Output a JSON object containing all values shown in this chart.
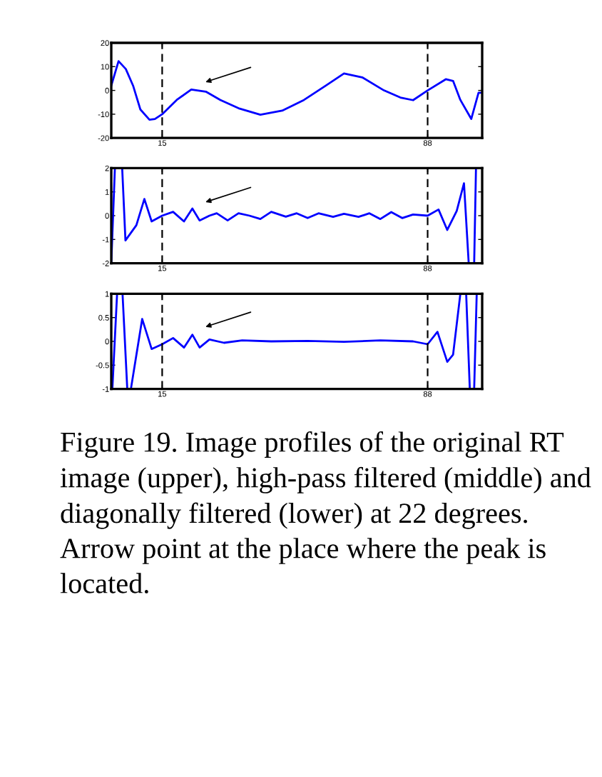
{
  "chart_data": [
    {
      "type": "line",
      "xlim": [
        1,
        103
      ],
      "xticks": [
        15,
        88
      ],
      "ylim": [
        -20,
        20
      ],
      "yticks": [
        -20,
        -10,
        0,
        10,
        20
      ],
      "grid": false,
      "marker": "none",
      "line_style": "solid",
      "ref_lines": [
        {
          "axis": "x",
          "value": 15,
          "color": "#000000",
          "line_style": "dashed"
        },
        {
          "axis": "x",
          "value": 88,
          "color": "#000000",
          "line_style": "dashed"
        }
      ],
      "x": [
        1,
        3,
        5,
        7,
        9,
        11.5,
        13,
        15,
        19,
        23,
        27,
        31,
        36,
        42,
        48,
        54,
        60,
        65,
        70,
        76,
        80.5,
        84,
        88,
        93,
        95,
        97,
        100,
        102,
        103
      ],
      "series": [
        {
          "color": "#0000ff",
          "values": [
            2,
            12.3,
            9,
            2,
            -8,
            -12.3,
            -12,
            -10,
            -4,
            0.4,
            -0.5,
            -4,
            -7.5,
            -10.2,
            -8.5,
            -4,
            2,
            7.1,
            5.5,
            0,
            -3,
            -4.1,
            0,
            4.7,
            4,
            -4,
            -12,
            -1,
            -1
          ]
        }
      ]
    },
    {
      "type": "line",
      "xlim": [
        1,
        103
      ],
      "xticks": [
        15,
        88
      ],
      "ylim": [
        -2,
        2
      ],
      "yticks": [
        -2,
        -1,
        0,
        1,
        2
      ],
      "grid": false,
      "marker": "none",
      "line_style": "solid",
      "ref_lines": [
        {
          "axis": "x",
          "value": 15,
          "color": "#000000",
          "line_style": "dashed"
        },
        {
          "axis": "x",
          "value": 88,
          "color": "#000000",
          "line_style": "dashed"
        }
      ],
      "x": [
        1,
        2,
        3,
        4,
        4.9,
        7.9,
        10.1,
        12.1,
        15,
        18,
        21,
        23.3,
        25.3,
        28,
        30,
        33,
        36,
        39,
        42,
        45,
        49,
        52,
        55,
        58,
        62,
        65,
        69,
        72,
        75,
        78,
        81,
        84,
        88,
        91,
        93.4,
        96,
        98,
        99.3,
        100,
        100.8,
        101.3
      ],
      "series": [
        {
          "color": "#0000ff",
          "values": [
            -2,
            2,
            null,
            2,
            -1.04,
            -0.4,
            0.7,
            -0.24,
            0,
            0.16,
            -0.24,
            0.3,
            -0.2,
            0,
            0.1,
            -0.2,
            0.1,
            0,
            -0.14,
            0.16,
            -0.04,
            0.1,
            -0.1,
            0.1,
            -0.05,
            0.08,
            -0.05,
            0.1,
            -0.14,
            0.15,
            -0.1,
            0.05,
            0,
            0.26,
            -0.6,
            0.2,
            1.36,
            -2,
            null,
            -2,
            2
          ]
        }
      ]
    },
    {
      "type": "line",
      "xlim": [
        1,
        103
      ],
      "xticks": [
        15,
        88
      ],
      "ylim": [
        -1,
        1
      ],
      "yticks": [
        -1,
        -0.5,
        0,
        0.5,
        1
      ],
      "grid": false,
      "marker": "none",
      "line_style": "solid",
      "ref_lines": [
        {
          "axis": "x",
          "value": 15,
          "color": "#000000",
          "line_style": "dashed"
        },
        {
          "axis": "x",
          "value": 88,
          "color": "#000000",
          "line_style": "dashed"
        }
      ],
      "annotations": [
        "Figure 19. Image profiles of the original RT image (upper), high-pass filtered (middle) and diagonally filtered (lower) at 22 degrees.  Arrow point at the place where the peak is located."
      ],
      "x": [
        1.3,
        2.6,
        3.3,
        4.1,
        5.4,
        6,
        6.4,
        9.5,
        12.1,
        15,
        18,
        21,
        23.3,
        25.3,
        28,
        32,
        37,
        45,
        55,
        65,
        75,
        84,
        88,
        90.7,
        93.4,
        95,
        97,
        98,
        98.6,
        99.6,
        100.2,
        100.8,
        101.5
      ],
      "series": [
        {
          "color": "#0000ff",
          "values": [
            -1,
            1,
            null,
            1,
            -1,
            null,
            -1,
            0.47,
            -0.16,
            -0.06,
            0.07,
            -0.13,
            0.14,
            -0.13,
            0.04,
            -0.03,
            0.02,
            0,
            0.01,
            -0.01,
            0.02,
            0,
            -0.06,
            0.2,
            -0.43,
            -0.28,
            1,
            null,
            1,
            -1,
            null,
            -1,
            1
          ]
        }
      ]
    }
  ]
}
